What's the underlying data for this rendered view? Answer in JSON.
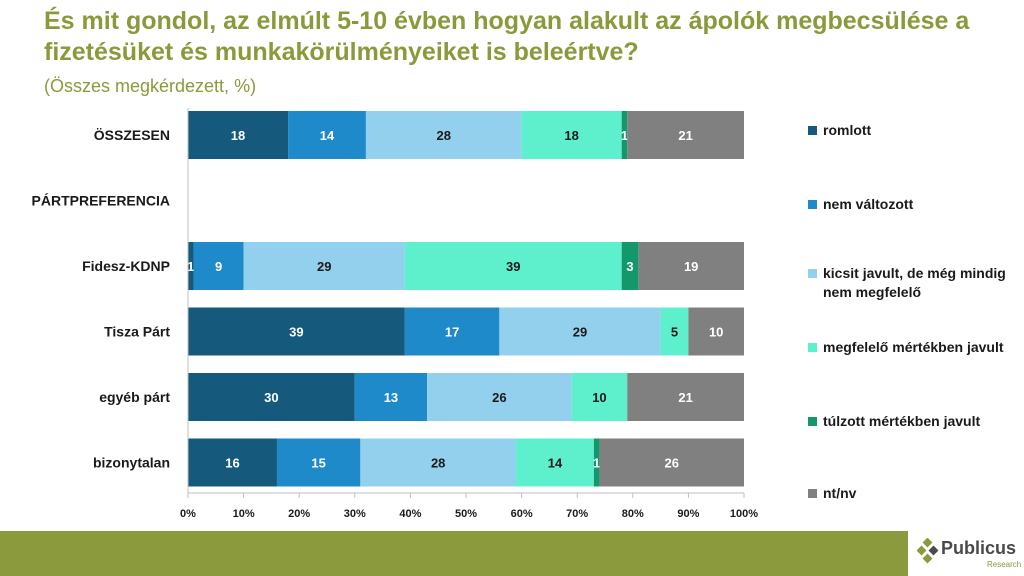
{
  "title": "És mit gondol, az elmúlt 5-10 évben hogyan alakult az ápolók megbecsülése a fizetésüket és munkakörülményeiket is beleértve?",
  "subtitle": "(Összes megkérdezett, %)",
  "logo": {
    "name": "Publicus",
    "sub": "Research"
  },
  "colors": {
    "title": "#8a9a3b",
    "footer": "#8b9a3c"
  },
  "legend": [
    {
      "label": "romlott",
      "color": "#155a7c"
    },
    {
      "label": "nem változott",
      "color": "#1f8ac9"
    },
    {
      "label": "kicsit javult, de még mindig nem megfelelő",
      "color": "#92d0ee"
    },
    {
      "label": "megfelelő mértékben javult",
      "color": "#5ef0cc"
    },
    {
      "label": "túlzott mértékben javult",
      "color": "#12986b"
    },
    {
      "label": "nt/nv",
      "color": "#808080"
    }
  ],
  "chart_data": {
    "type": "bar",
    "orientation": "horizontal",
    "stacked": "percent",
    "categories": [
      "ÖSSZESEN",
      "PÁRTPREFERENCIA",
      "Fidesz-KDNP",
      "Tisza Párt",
      "egyéb párt",
      "bizonytalan"
    ],
    "series": [
      {
        "name": "romlott",
        "values": [
          18,
          null,
          1,
          39,
          30,
          16
        ]
      },
      {
        "name": "nem változott",
        "values": [
          14,
          null,
          9,
          17,
          13,
          15
        ]
      },
      {
        "name": "kicsit javult, de még mindig nem megfelelő",
        "values": [
          28,
          null,
          29,
          29,
          26,
          28
        ]
      },
      {
        "name": "megfelelő mértékben javult",
        "values": [
          18,
          null,
          39,
          5,
          10,
          14
        ]
      },
      {
        "name": "túlzott mértékben javult",
        "values": [
          1,
          null,
          3,
          0,
          0,
          1
        ]
      },
      {
        "name": "nt/nv",
        "values": [
          21,
          null,
          19,
          10,
          21,
          26
        ]
      }
    ],
    "xticks": [
      "0%",
      "10%",
      "20%",
      "30%",
      "40%",
      "50%",
      "60%",
      "70%",
      "80%",
      "90%",
      "100%"
    ],
    "xlim": [
      0,
      100
    ],
    "grid": false,
    "legend_position": "right"
  }
}
